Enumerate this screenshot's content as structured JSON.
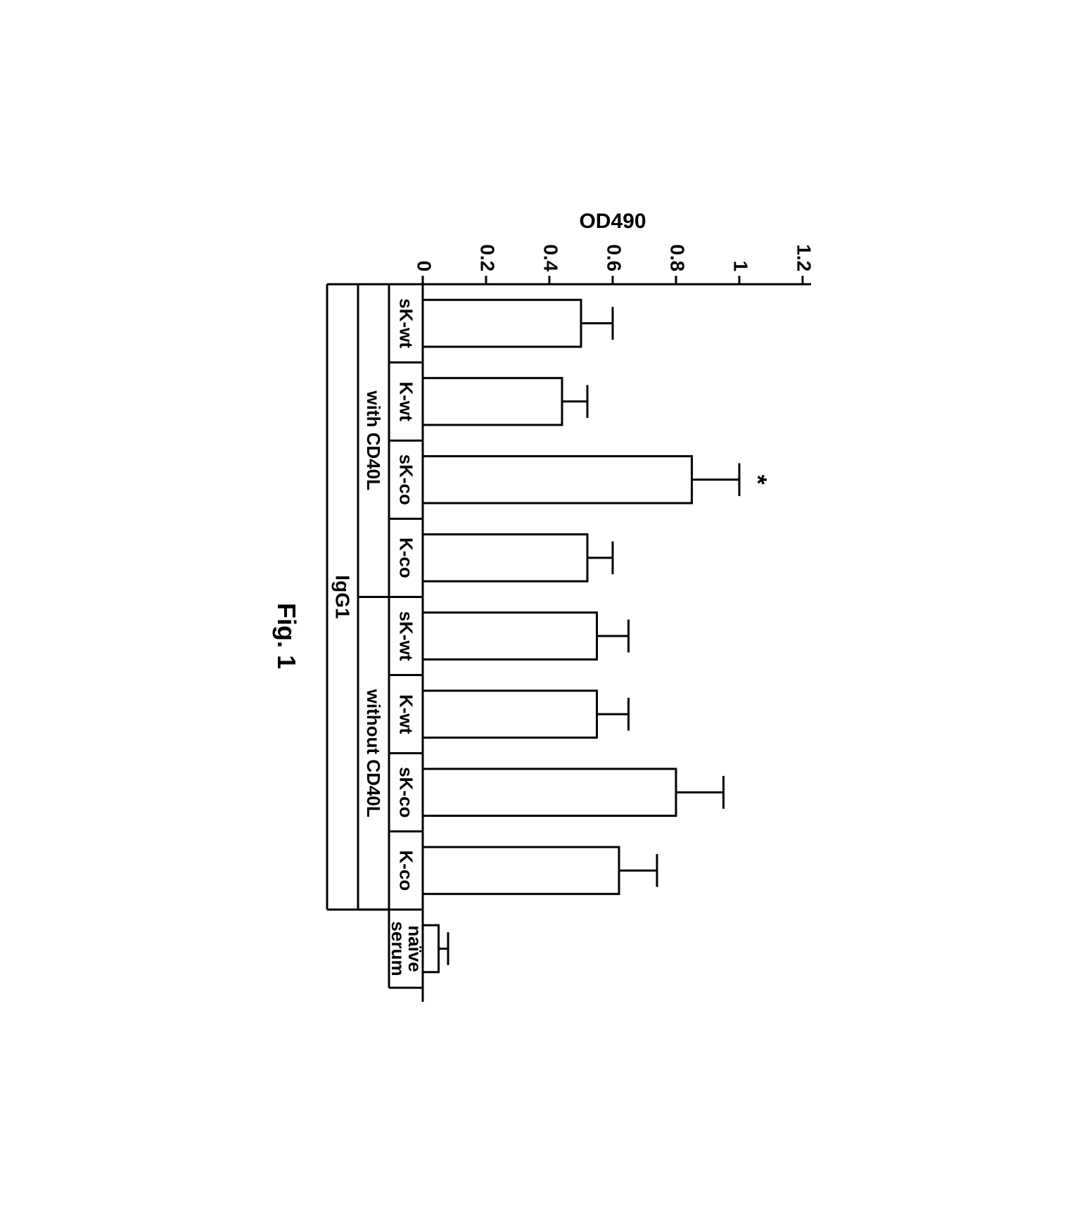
{
  "chart": {
    "type": "bar",
    "ylabel": "OD490",
    "ylim": [
      0,
      1.2
    ],
    "ytick_step": 0.2,
    "yticks": [
      0,
      0.2,
      0.4,
      0.6,
      0.8,
      1,
      1.2
    ],
    "ytick_labels": [
      "0",
      "0.2",
      "0.4",
      "0.6",
      "0.8",
      "1",
      "1.2"
    ],
    "categories": [
      "sK-wt",
      "K-wt",
      "sK-co",
      "K-co",
      "sK-wt",
      "K-wt",
      "sK-co",
      "K-co",
      "naïve serum"
    ],
    "values": [
      0.5,
      0.44,
      0.85,
      0.52,
      0.55,
      0.55,
      0.8,
      0.62,
      0.05
    ],
    "errors": [
      0.1,
      0.08,
      0.15,
      0.08,
      0.1,
      0.1,
      0.15,
      0.12,
      0.03
    ],
    "significance": [
      false,
      false,
      true,
      false,
      false,
      false,
      false,
      false,
      false
    ],
    "significance_marker": "*",
    "groups": [
      {
        "label": "with CD40L",
        "start": 0,
        "end": 3
      },
      {
        "label": "without CD40L",
        "start": 4,
        "end": 7
      }
    ],
    "super_label": "IgG1",
    "figure_label": "Fig. 1",
    "bar_color": "#ffffff",
    "bar_stroke": "#000000",
    "background_color": "#ffffff",
    "line_width": 3,
    "bar_width_ratio": 0.6,
    "label_fontsize": 28,
    "axis_fontsize": 30,
    "fig_fontsize": 36
  }
}
